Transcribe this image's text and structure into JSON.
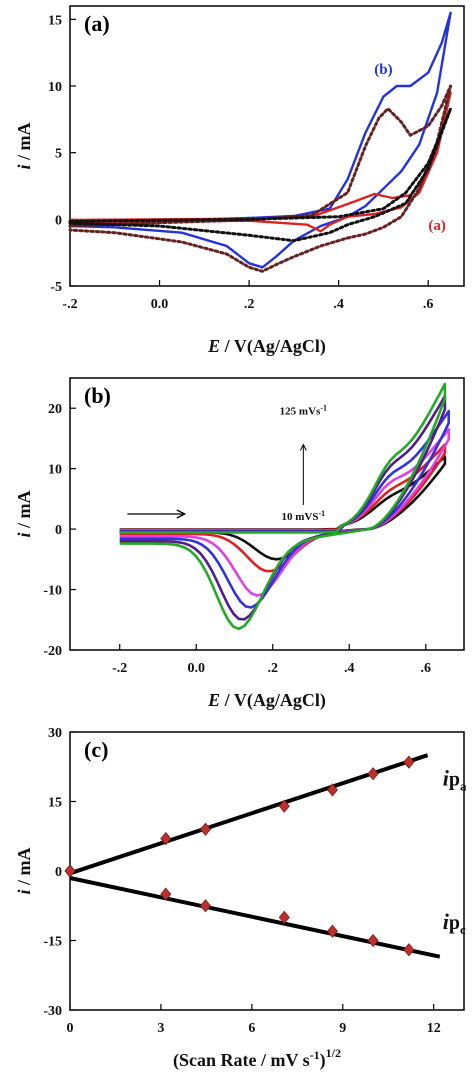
{
  "chart_data": [
    {
      "type": "line",
      "panel_label": "(a)",
      "xlabel_italic": "E",
      "xlabel_rest": " / V(Ag/AgCl)",
      "ylabel_italic": "i",
      "ylabel_rest": " / mA",
      "xlim": [
        -0.2,
        0.68
      ],
      "ylim": [
        -5,
        16
      ],
      "xticks": [
        -0.2,
        0,
        0.2,
        0.4,
        0.6
      ],
      "xtick_labels": [
        "-.2",
        "0.0",
        ".2",
        ".4",
        ".6"
      ],
      "yticks": [
        -5,
        0,
        5,
        10,
        15
      ],
      "ytick_labels": [
        "-5",
        "0",
        "5",
        "10",
        "15"
      ],
      "annotations": [
        {
          "text": "(b)",
          "x": 0.5,
          "y": 10.9,
          "color": "#2233dd"
        },
        {
          "text": "(a)",
          "x": 0.62,
          "y": -0.8,
          "color": "#dd2222"
        }
      ],
      "series": [
        {
          "color": "#2233dd",
          "style": "solid",
          "cv": {
            "anodic": [
              [
                -0.2,
                -0.3
              ],
              [
                0.0,
                -0.1
              ],
              [
                0.2,
                0.1
              ],
              [
                0.3,
                0.25
              ],
              [
                0.38,
                0.8
              ],
              [
                0.42,
                3
              ],
              [
                0.46,
                6.5
              ],
              [
                0.5,
                9.2
              ],
              [
                0.53,
                10
              ],
              [
                0.56,
                10
              ],
              [
                0.6,
                11
              ],
              [
                0.63,
                13.2
              ],
              [
                0.65,
                15.5
              ]
            ],
            "cathodic": [
              [
                0.65,
                15.5
              ],
              [
                0.62,
                9.5
              ],
              [
                0.58,
                5.6
              ],
              [
                0.54,
                3.6
              ],
              [
                0.5,
                2.3
              ],
              [
                0.46,
                1.0
              ],
              [
                0.42,
                0.2
              ],
              [
                0.36,
                -0.5
              ],
              [
                0.3,
                -1.6
              ],
              [
                0.26,
                -2.8
              ],
              [
                0.23,
                -3.6
              ],
              [
                0.2,
                -3.3
              ],
              [
                0.15,
                -2.0
              ],
              [
                0.05,
                -1.0
              ],
              [
                -0.1,
                -0.6
              ],
              [
                -0.2,
                -0.5
              ]
            ]
          }
        },
        {
          "color": "#dd2222",
          "style": "solid",
          "cv": {
            "anodic": [
              [
                -0.2,
                -0.05
              ],
              [
                0.2,
                0.05
              ],
              [
                0.34,
                0.2
              ],
              [
                0.4,
                0.9
              ],
              [
                0.44,
                1.4
              ],
              [
                0.48,
                1.9
              ],
              [
                0.52,
                1.6
              ],
              [
                0.56,
                1.8
              ],
              [
                0.6,
                3.5
              ],
              [
                0.63,
                6.5
              ],
              [
                0.65,
                9.5
              ]
            ],
            "cathodic": [
              [
                0.65,
                9.5
              ],
              [
                0.62,
                5
              ],
              [
                0.58,
                2
              ],
              [
                0.54,
                0.9
              ],
              [
                0.48,
                0.4
              ],
              [
                0.42,
                0.2
              ],
              [
                0.38,
                -0.4
              ],
              [
                0.36,
                -0.9
              ],
              [
                0.33,
                -0.4
              ],
              [
                0.2,
                -0.1
              ],
              [
                -0.2,
                -0.2
              ]
            ]
          }
        },
        {
          "color": "#662222",
          "style": "dotted",
          "cv": {
            "anodic": [
              [
                -0.2,
                -0.5
              ],
              [
                0.0,
                -0.25
              ],
              [
                0.2,
                -0.05
              ],
              [
                0.34,
                0.3
              ],
              [
                0.42,
                2
              ],
              [
                0.46,
                5.5
              ],
              [
                0.49,
                7.6
              ],
              [
                0.51,
                8.3
              ],
              [
                0.54,
                7.3
              ],
              [
                0.56,
                6.3
              ],
              [
                0.6,
                7
              ],
              [
                0.63,
                8.5
              ],
              [
                0.65,
                10
              ]
            ],
            "cathodic": [
              [
                0.65,
                10
              ],
              [
                0.62,
                5.8
              ],
              [
                0.58,
                2.3
              ],
              [
                0.54,
                0.2
              ],
              [
                0.5,
                -0.6
              ],
              [
                0.46,
                -1.1
              ],
              [
                0.42,
                -1.4
              ],
              [
                0.36,
                -2
              ],
              [
                0.3,
                -2.8
              ],
              [
                0.26,
                -3.4
              ],
              [
                0.23,
                -3.9
              ],
              [
                0.2,
                -3.6
              ],
              [
                0.15,
                -2.6
              ],
              [
                0.05,
                -1.7
              ],
              [
                -0.1,
                -1.0
              ],
              [
                -0.2,
                -0.8
              ]
            ]
          }
        },
        {
          "color": "#111111",
          "style": "dotted",
          "cv": {
            "anodic": [
              [
                -0.2,
                -0.15
              ],
              [
                0.2,
                0.0
              ],
              [
                0.4,
                0.2
              ],
              [
                0.5,
                0.8
              ],
              [
                0.55,
                2.0
              ],
              [
                0.6,
                4.2
              ],
              [
                0.63,
                6.6
              ],
              [
                0.65,
                8.3
              ]
            ],
            "cathodic": [
              [
                0.65,
                8.3
              ],
              [
                0.6,
                3.8
              ],
              [
                0.55,
                1.2
              ],
              [
                0.48,
                0.2
              ],
              [
                0.42,
                -0.4
              ],
              [
                0.38,
                -1.0
              ],
              [
                0.3,
                -1.6
              ],
              [
                0.2,
                -1.2
              ],
              [
                0.0,
                -0.5
              ],
              [
                -0.2,
                -0.3
              ]
            ]
          }
        }
      ]
    },
    {
      "type": "line",
      "panel_label": "(b)",
      "xlabel_italic": "E",
      "xlabel_rest": " / V(Ag/AgCl)",
      "ylabel_italic": "i",
      "ylabel_rest": " / mA",
      "xlim": [
        -0.33,
        0.7
      ],
      "ylim": [
        -20,
        25
      ],
      "xticks": [
        -0.2,
        0,
        0.2,
        0.4,
        0.6
      ],
      "xtick_labels": [
        "-.2",
        "0.0",
        ".2",
        ".4",
        ".6"
      ],
      "yticks": [
        -20,
        -10,
        0,
        10,
        20
      ],
      "ytick_labels": [
        "-20",
        "-10",
        "0",
        "10",
        "20"
      ],
      "annotation_top": "125 mVs",
      "annotation_bottom": "10 mVS",
      "annotation_sup": "-1",
      "scan_rates": [
        {
          "color": "#111111",
          "anodic_peak": 7.3,
          "cathodic_peak": -5,
          "cathodic_peak_e": 0.21,
          "e_max": 0.65,
          "i_max": 12,
          "base": -0.3
        },
        {
          "color": "#e02020",
          "anodic_peak": 10.3,
          "cathodic_peak": -7,
          "cathodic_peak_e": 0.19,
          "e_max": 0.65,
          "i_max": 14,
          "base": -0.6
        },
        {
          "color": "#e040e0",
          "anodic_peak": 16,
          "cathodic_peak": -11,
          "cathodic_peak_e": 0.16,
          "e_max": 0.66,
          "i_max": 16.5,
          "base": -1
        },
        {
          "color": "#3333dd",
          "anodic_peak": 18,
          "cathodic_peak": -13,
          "cathodic_peak_e": 0.14,
          "e_max": 0.66,
          "i_max": 19.5,
          "base": -1.4
        },
        {
          "color": "#551a8b",
          "anodic_peak": 20,
          "cathodic_peak": -15,
          "cathodic_peak_e": 0.12,
          "e_max": 0.65,
          "i_max": 22,
          "base": -1.8
        },
        {
          "color": "#22aa22",
          "anodic_peak": 22,
          "cathodic_peak": -16.5,
          "cathodic_peak_e": 0.11,
          "e_max": 0.65,
          "i_max": 24,
          "base": -2.2
        }
      ]
    },
    {
      "type": "scatter",
      "panel_label": "(c)",
      "xlabel": "(Scan Rate / mV s",
      "xlabel_sup": "-1",
      "xlabel_end": ")",
      "xlabel_sup2": "1/2",
      "ylabel_italic": "i",
      "ylabel_rest": " / mA",
      "xlim": [
        0,
        13
      ],
      "ylim": [
        -30,
        30
      ],
      "xticks": [
        0,
        3,
        6,
        9,
        12
      ],
      "xtick_labels": [
        "0",
        "3",
        "6",
        "9",
        "12"
      ],
      "yticks": [
        -30,
        -15,
        0,
        15,
        30
      ],
      "ytick_labels": [
        "-30",
        "-15",
        "0",
        "15",
        "30"
      ],
      "ipa_label": "ip",
      "ipa_sub": "a",
      "ipc_label": "ip",
      "ipc_sub": "c",
      "series": [
        {
          "name": "ipa",
          "points": [
            [
              0,
              0
            ],
            [
              3.16,
              7
            ],
            [
              4.47,
              9
            ],
            [
              7.07,
              14
            ],
            [
              8.66,
              17.5
            ],
            [
              10,
              21
            ],
            [
              11.18,
              23.5
            ]
          ],
          "fit": [
            [
              0,
              -0.5
            ],
            [
              11.8,
              25
            ]
          ]
        },
        {
          "name": "ipc",
          "points": [
            [
              0,
              0
            ],
            [
              3.16,
              -5
            ],
            [
              4.47,
              -7.5
            ],
            [
              7.07,
              -10
            ],
            [
              8.66,
              -13
            ],
            [
              10,
              -15
            ],
            [
              11.18,
              -17
            ]
          ],
          "fit": [
            [
              0,
              -1.5
            ],
            [
              12.2,
              -18.5
            ]
          ]
        }
      ]
    }
  ]
}
